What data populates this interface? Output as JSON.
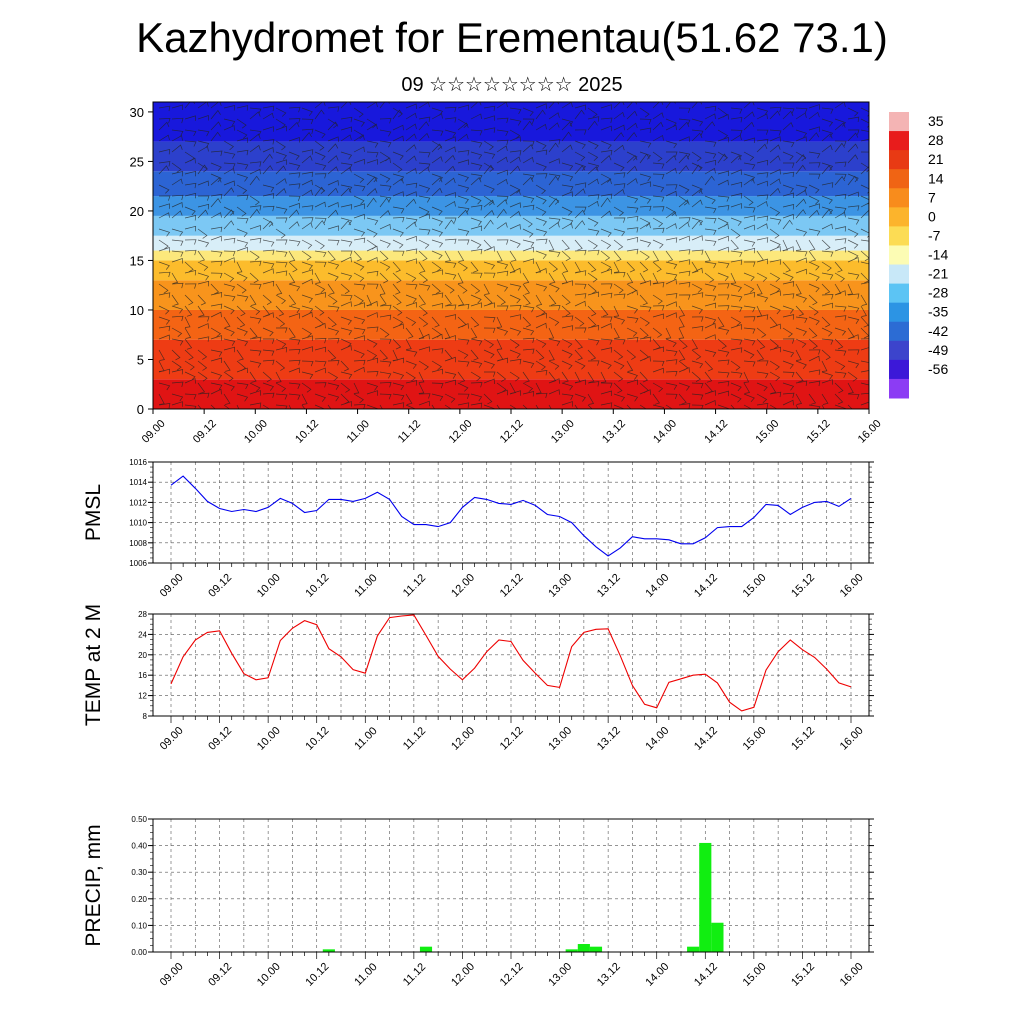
{
  "header": {
    "title": "Kazhydromet for Erementau(51.62 73.1)",
    "subtitle": "09 ☆☆☆☆☆☆☆☆ 2025"
  },
  "chart_data": [
    {
      "type": "heatmap",
      "subtype": "time-height temperature cross-section with wind barbs",
      "x_ticks": [
        "09.00",
        "09.12",
        "10.00",
        "10.12",
        "11.00",
        "11.12",
        "12.00",
        "12.12",
        "13.00",
        "13.12",
        "14.00",
        "14.12",
        "15.00",
        "15.12",
        "16.00"
      ],
      "y_ticks": [
        0,
        5,
        10,
        15,
        20,
        25,
        30
      ],
      "ylim": [
        0,
        31
      ],
      "colorbar": {
        "labels": [
          "35",
          "28",
          "21",
          "14",
          "7",
          "0",
          "-7",
          "-14",
          "-21",
          "-28",
          "-35",
          "-42",
          "-49",
          "-56"
        ],
        "colors": [
          "#f4b4b4",
          "#e81c1c",
          "#e83a14",
          "#f06414",
          "#f88c1c",
          "#fcb42c",
          "#fcdc54",
          "#fcfcb4",
          "#c8e8f8",
          "#5cc4f4",
          "#2c94e4",
          "#2c6cd4",
          "#3c44cc",
          "#3c18d8",
          "#8c3cf4"
        ]
      },
      "bands": [
        {
          "from": 0,
          "to": 3,
          "color": "#e01414"
        },
        {
          "from": 3,
          "to": 7,
          "color": "#ee3c14"
        },
        {
          "from": 7,
          "to": 10,
          "color": "#f46414"
        },
        {
          "from": 10,
          "to": 13,
          "color": "#f8941c"
        },
        {
          "from": 13,
          "to": 15,
          "color": "#fcbc2c"
        },
        {
          "from": 15,
          "to": 16,
          "color": "#fce87c"
        },
        {
          "from": 16,
          "to": 17.5,
          "color": "#d8eef8"
        },
        {
          "from": 17.5,
          "to": 19.5,
          "color": "#7cc8f4"
        },
        {
          "from": 19.5,
          "to": 21.5,
          "color": "#3c94e4"
        },
        {
          "from": 21.5,
          "to": 24,
          "color": "#2c64d4"
        },
        {
          "from": 24,
          "to": 27,
          "color": "#2c40cc"
        },
        {
          "from": 27,
          "to": 31,
          "color": "#1818dc"
        }
      ]
    },
    {
      "type": "line",
      "ylabel": "PMSL",
      "ylim": [
        1006,
        1016
      ],
      "y_ticks": [
        "1006",
        "1008",
        "1010",
        "1012",
        "1014",
        "1016"
      ],
      "x_ticks": [
        "09.00",
        "09.12",
        "10.00",
        "10.12",
        "11.00",
        "11.12",
        "12.00",
        "12.12",
        "13.00",
        "13.12",
        "14.00",
        "14.12",
        "15.00",
        "15.12",
        "16.00"
      ],
      "color": "#0000ee",
      "x": [
        0,
        3,
        6,
        9,
        12,
        15,
        18,
        21,
        24,
        27,
        30,
        33,
        36,
        39,
        42,
        45,
        48,
        51,
        54,
        57,
        60,
        63,
        66,
        69,
        72,
        75,
        78,
        81,
        84,
        87,
        90,
        93,
        96,
        99,
        102,
        105,
        108,
        111,
        114,
        117,
        120,
        123,
        126,
        129,
        132,
        135,
        138,
        141,
        144,
        147,
        150,
        153,
        156,
        159,
        162,
        165,
        168
      ],
      "values": [
        1013.7,
        1014.6,
        1013.4,
        1012.1,
        1011.4,
        1011.1,
        1011.3,
        1011.1,
        1011.5,
        1012.4,
        1011.9,
        1011.0,
        1011.2,
        1012.3,
        1012.3,
        1012.1,
        1012.4,
        1013.0,
        1012.3,
        1010.6,
        1009.8,
        1009.8,
        1009.6,
        1010.0,
        1011.5,
        1012.5,
        1012.3,
        1011.9,
        1011.8,
        1012.2,
        1011.7,
        1010.8,
        1010.6,
        1010.0,
        1008.7,
        1007.6,
        1006.7,
        1007.5,
        1008.6,
        1008.4,
        1008.4,
        1008.3,
        1007.9,
        1007.9,
        1008.5,
        1009.5,
        1009.6,
        1009.6,
        1010.5,
        1011.8,
        1011.7,
        1010.8,
        1011.5,
        1012.0,
        1012.1,
        1011.6,
        1012.4
      ]
    },
    {
      "type": "line",
      "ylabel": "TEMP at 2 M",
      "ylim": [
        8,
        28
      ],
      "y_ticks": [
        "8",
        "12",
        "16",
        "20",
        "24",
        "28"
      ],
      "x_ticks": [
        "09.00",
        "09.12",
        "10.00",
        "10.12",
        "11.00",
        "11.12",
        "12.00",
        "12.12",
        "13.00",
        "13.12",
        "14.00",
        "14.12",
        "15.00",
        "15.12",
        "16.00"
      ],
      "color": "#ee0000",
      "x": [
        0,
        3,
        6,
        9,
        12,
        15,
        18,
        21,
        24,
        27,
        30,
        33,
        36,
        39,
        42,
        45,
        48,
        51,
        54,
        57,
        60,
        63,
        66,
        69,
        72,
        75,
        78,
        81,
        84,
        87,
        90,
        93,
        96,
        99,
        102,
        105,
        108,
        111,
        114,
        117,
        120,
        123,
        126,
        129,
        132,
        135,
        138,
        141,
        144,
        147,
        150,
        153,
        156,
        159,
        162,
        165,
        168
      ],
      "values": [
        14.3,
        19.6,
        22.9,
        24.4,
        24.7,
        20.3,
        16.3,
        15.1,
        15.5,
        22.8,
        25.2,
        26.7,
        25.9,
        21.2,
        19.6,
        17.1,
        16.4,
        23.7,
        27.3,
        27.6,
        27.8,
        23.8,
        19.7,
        17.2,
        15.1,
        17.4,
        20.6,
        22.9,
        22.6,
        18.9,
        16.4,
        14.0,
        13.6,
        21.6,
        24.4,
        25.0,
        25.1,
        19.8,
        14.0,
        10.3,
        9.6,
        14.6,
        15.3,
        16.0,
        16.2,
        14.5,
        10.7,
        9.0,
        9.7,
        17.0,
        20.6,
        22.9,
        21.0,
        19.5,
        17.2,
        14.5,
        13.7
      ]
    },
    {
      "type": "bar",
      "ylabel": "PRECIP, mm",
      "ylim": [
        0,
        0.5
      ],
      "y_ticks": [
        "0.00",
        "0.10",
        "0.20",
        "0.30",
        "0.40",
        "0.50"
      ],
      "x_ticks": [
        "09.00",
        "09.12",
        "10.00",
        "10.12",
        "11.00",
        "11.12",
        "12.00",
        "12.12",
        "13.00",
        "13.12",
        "14.00",
        "14.12",
        "15.00",
        "15.12",
        "16.00"
      ],
      "color": "#11ee11",
      "x": [
        39,
        63,
        99,
        102,
        105,
        129,
        132,
        135
      ],
      "values": [
        0.01,
        0.02,
        0.01,
        0.03,
        0.02,
        0.02,
        0.41,
        0.11
      ]
    }
  ]
}
